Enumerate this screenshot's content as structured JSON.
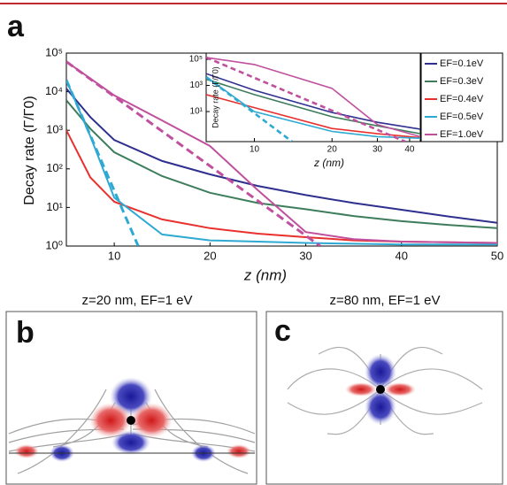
{
  "panels": {
    "a": "a",
    "b": "b",
    "c": "c"
  },
  "chart_data": [
    {
      "type": "line",
      "y_log": true,
      "xlabel": "z (nm)",
      "ylabel": "Decay rate (Γ/Γ0)",
      "xlim": [
        5,
        50
      ],
      "ylim": [
        1,
        100000
      ],
      "xticks": [
        10,
        20,
        30,
        40,
        50
      ],
      "yticks": [
        {
          "value": 1,
          "label": "10⁰"
        },
        {
          "value": 10,
          "label": "10¹"
        },
        {
          "value": 100,
          "label": "10²"
        },
        {
          "value": 1000,
          "label": "10³"
        },
        {
          "value": 10000,
          "label": "10⁴"
        },
        {
          "value": 100000,
          "label": "10⁵"
        }
      ],
      "series": [
        {
          "name": "EF=0.1eV",
          "color": "#2e2f8e",
          "x": [
            5,
            7.5,
            10,
            15,
            20,
            25,
            30,
            35,
            40,
            45,
            50
          ],
          "values": [
            12000,
            2200,
            560,
            160,
            72,
            36,
            21,
            13,
            8.7,
            5.8,
            4
          ]
        },
        {
          "name": "EF=0.3eV",
          "color": "#3e7d5c",
          "x": [
            5,
            7.5,
            10,
            15,
            20,
            25,
            30,
            35,
            40,
            45,
            50
          ],
          "values": [
            6000,
            1100,
            270,
            65,
            24,
            13,
            9,
            6,
            4.4,
            3.5,
            2.9
          ]
        },
        {
          "name": "EF=0.4eV",
          "color": "#e8312f",
          "x": [
            5,
            7.5,
            10,
            15,
            20,
            25,
            30,
            35,
            40,
            45,
            50
          ],
          "values": [
            1000,
            60,
            14,
            4.9,
            2.9,
            2.1,
            1.7,
            1.4,
            1.3,
            1.25,
            1.2
          ]
        },
        {
          "name": "EF=0.5eV",
          "color": "#2ea9d3",
          "x": [
            5,
            7.5,
            10,
            15,
            20,
            25,
            30,
            35,
            40,
            45,
            50
          ],
          "values": [
            20000,
            700,
            18,
            2,
            1.4,
            1.3,
            1.2,
            1.15,
            1.1,
            1.1,
            1.1
          ]
        },
        {
          "name": "EF=1.0eV",
          "color": "#c0509e",
          "x": [
            5,
            7.5,
            10,
            15,
            20,
            25,
            30,
            35,
            40,
            45,
            50
          ],
          "values": [
            60000,
            22000,
            8000,
            1800,
            390,
            28,
            2.3,
            1.5,
            1.3,
            1.25,
            1.2
          ]
        },
        {
          "color": "#2ea9d3",
          "dashed": true,
          "x": [
            5,
            12.5
          ],
          "values": [
            20000,
            1
          ]
        },
        {
          "color": "#c0509e",
          "dashed": true,
          "x": [
            5,
            31.5
          ],
          "values": [
            60000,
            1
          ]
        }
      ]
    },
    {
      "type": "line",
      "x_log": true,
      "y_log": true,
      "xlabel": "z (nm)",
      "ylabel": "Decay rate (Γ/Γ0)",
      "xlim": [
        6.5,
        44
      ],
      "ylim": [
        0.05,
        300000
      ],
      "xticks": [
        10,
        20,
        30,
        40
      ],
      "yticks": [
        {
          "value": 10,
          "label": "10¹"
        },
        {
          "value": 1000,
          "label": "10³"
        },
        {
          "value": 100000,
          "label": "10⁵"
        }
      ],
      "series": [
        {
          "color": "#2e2f8e",
          "x": [
            6.5,
            10,
            20,
            30,
            44
          ],
          "values": [
            8000,
            430,
            8.5,
            1.5,
            0.45
          ]
        },
        {
          "color": "#3e7d5c",
          "x": [
            6.5,
            10,
            20,
            30,
            44
          ],
          "values": [
            3000,
            200,
            4,
            0.8,
            0.2
          ]
        },
        {
          "color": "#e8312f",
          "x": [
            6.5,
            10,
            20,
            30,
            44
          ],
          "values": [
            200,
            20,
            0.5,
            0.2,
            0.1
          ]
        },
        {
          "color": "#2ea9d3",
          "x": [
            6.5,
            10,
            20,
            30,
            44
          ],
          "values": [
            4500,
            10,
            0.3,
            0.12,
            0.09
          ]
        },
        {
          "color": "#c0509e",
          "x": [
            6.5,
            10,
            20,
            30,
            44
          ],
          "values": [
            140000,
            40000,
            600,
            1,
            0.12
          ]
        },
        {
          "color": "#2ea9d3",
          "dashed": true,
          "x": [
            6.5,
            14
          ],
          "values": [
            4500,
            0.05
          ]
        },
        {
          "color": "#c0509e",
          "dashed": true,
          "x": [
            6.5,
            38.5
          ],
          "values": [
            140000,
            0.05
          ]
        }
      ]
    }
  ],
  "field_b": {
    "title": "z=20 nm,   EF=1 eV"
  },
  "field_c": {
    "title": "z=80 nm, EF=1 eV"
  }
}
